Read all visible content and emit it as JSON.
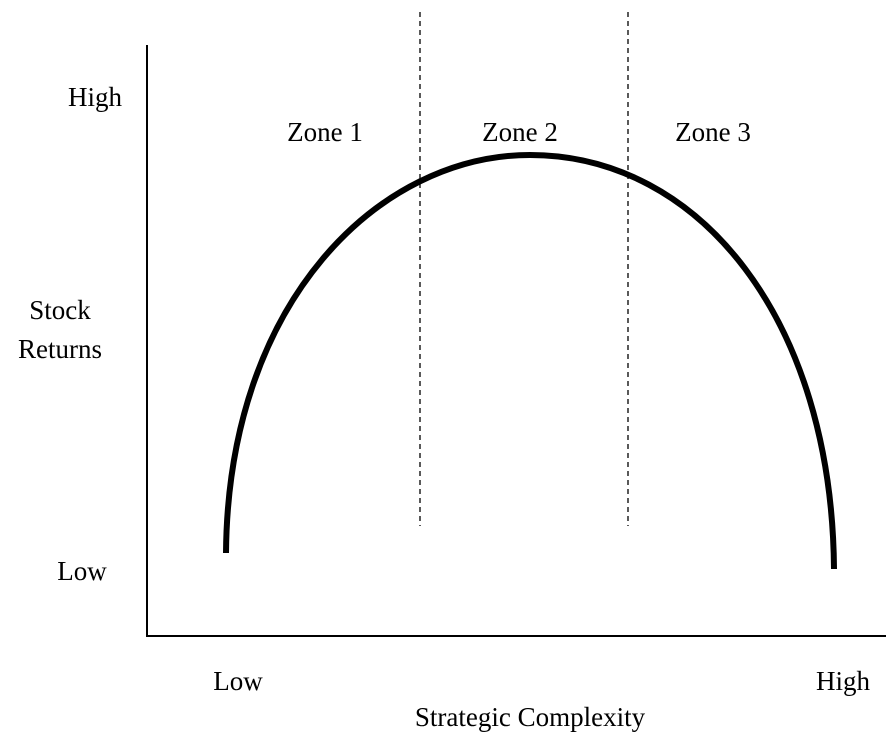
{
  "y_axis": {
    "label": [
      "Stock",
      "Returns"
    ],
    "high": "High",
    "low": "Low"
  },
  "x_axis": {
    "label": "Strategic Complexity",
    "low": "Low",
    "high": "High"
  },
  "zones": [
    "Zone 1",
    "Zone 2",
    "Zone 3"
  ]
}
